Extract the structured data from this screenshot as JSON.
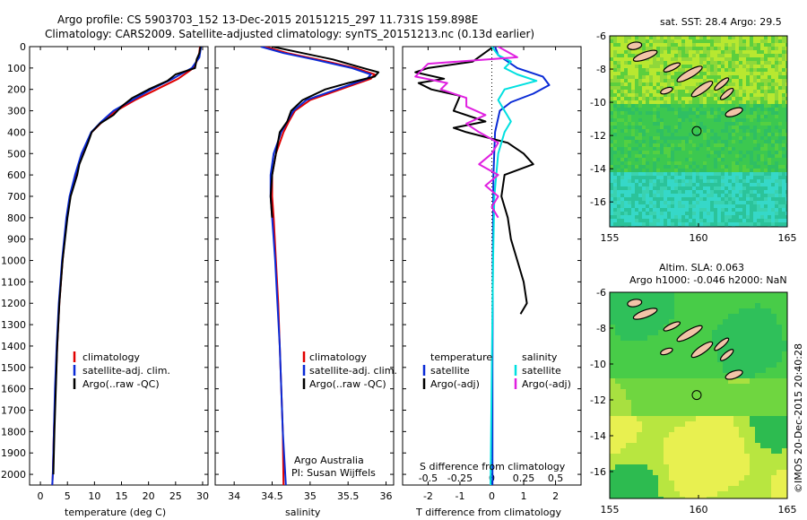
{
  "header": {
    "line1": "Argo profile: CS 5903703_152 13-Dec-2015 20151215_297 11.731S 159.898E",
    "line2": "Climatology: CARS2009. Satellite-adjusted climatology: synTS_20151213.nc (0.13d earlier)"
  },
  "colors": {
    "clim": "#e00000",
    "sat": "#0a2bd6",
    "argo": "#000000",
    "sat_s": "#00e0e0",
    "argo_s": "#e020e0"
  },
  "depth_axis": {
    "ticks": [
      "0",
      "100",
      "200",
      "300",
      "400",
      "500",
      "600",
      "700",
      "800",
      "900",
      "1000",
      "1100",
      "1200",
      "1300",
      "1400",
      "1500",
      "1600",
      "1700",
      "1800",
      "1900",
      "2000"
    ]
  },
  "chart_data": [
    {
      "type": "line",
      "id": "temperature",
      "xlabel": "temperature (deg C)",
      "ylabel": "",
      "xlim": [
        -2,
        31
      ],
      "ylim": [
        2050,
        0
      ],
      "xticks": [
        "0",
        "5",
        "10",
        "15",
        "20",
        "25",
        "30"
      ],
      "legend": [
        "climatology",
        "satellite-adj. clim.",
        "Argo(..raw -QC)"
      ],
      "series": [
        {
          "name": "climatology",
          "depth": [
            0,
            50,
            100,
            150,
            200,
            250,
            300,
            350,
            400,
            500,
            600,
            700,
            800,
            900,
            1000,
            1200,
            1400,
            1600,
            1800,
            2000,
            2050
          ],
          "values": [
            29.5,
            29.3,
            28.3,
            25.5,
            21.5,
            17.5,
            14,
            11.5,
            9.5,
            7.7,
            6.5,
            5.5,
            4.9,
            4.5,
            4.1,
            3.5,
            3.1,
            2.8,
            2.5,
            2.3,
            2.2
          ]
        },
        {
          "name": "satellite-adj. clim.",
          "depth": [
            0,
            50,
            100,
            150,
            200,
            250,
            300,
            350,
            400,
            500,
            600,
            700,
            800,
            900,
            1000,
            1200,
            1400,
            1600,
            1800,
            2000,
            2050
          ],
          "values": [
            29.7,
            29.4,
            28.0,
            24.5,
            20.5,
            17.0,
            13.5,
            11.3,
            9.4,
            7.6,
            6.4,
            5.4,
            4.8,
            4.4,
            4.0,
            3.4,
            3.0,
            2.7,
            2.5,
            2.3,
            2.2
          ]
        },
        {
          "name": "Argo(..raw -QC)",
          "depth": [
            0,
            30,
            60,
            100,
            130,
            160,
            200,
            240,
            280,
            320,
            360,
            400,
            450,
            500,
            550,
            600,
            700,
            800,
            1000,
            1200,
            1400,
            1800,
            2000
          ],
          "values": [
            29.6,
            29.4,
            28.9,
            28.6,
            25.0,
            23.5,
            20.0,
            17.0,
            15.0,
            13.5,
            11.0,
            9.5,
            8.8,
            8.0,
            7.2,
            6.8,
            5.6,
            5.0,
            4.1,
            3.5,
            3.1,
            2.6,
            2.4
          ]
        }
      ]
    },
    {
      "type": "line",
      "id": "salinity",
      "xlabel": "salinity",
      "ylabel": "",
      "xlim": [
        33.75,
        36.1
      ],
      "ylim": [
        2050,
        0
      ],
      "xticks": [
        "34",
        "34.5",
        "35",
        "35.5",
        "36"
      ],
      "legend": [
        "climatology",
        "satellite-adj. clim.",
        "Argo(..raw -QC)"
      ],
      "series": [
        {
          "name": "climatology",
          "depth": [
            0,
            30,
            60,
            100,
            130,
            150,
            200,
            250,
            300,
            350,
            400,
            500,
            600,
            700,
            800,
            1000,
            1200,
            1400,
            1600,
            1800,
            2050
          ],
          "values": [
            34.4,
            34.7,
            35.1,
            35.6,
            35.85,
            35.8,
            35.4,
            35.0,
            34.8,
            34.72,
            34.65,
            34.55,
            34.5,
            34.5,
            34.52,
            34.55,
            34.58,
            34.6,
            34.62,
            34.64,
            34.65
          ]
        },
        {
          "name": "satellite-adj. clim.",
          "depth": [
            0,
            30,
            60,
            100,
            130,
            150,
            200,
            250,
            300,
            350,
            400,
            500,
            600,
            700,
            800,
            1000,
            1200,
            1400,
            1600,
            1800,
            2050
          ],
          "values": [
            34.35,
            34.65,
            35.05,
            35.55,
            35.8,
            35.75,
            35.35,
            34.95,
            34.78,
            34.7,
            34.62,
            34.52,
            34.48,
            34.48,
            34.5,
            34.54,
            34.57,
            34.6,
            34.62,
            34.64,
            34.68
          ]
        },
        {
          "name": "Argo(..raw -QC)",
          "depth": [
            0,
            30,
            60,
            100,
            120,
            140,
            170,
            200,
            250,
            300,
            350,
            400,
            500,
            600,
            700,
            800
          ],
          "values": [
            34.5,
            34.9,
            35.3,
            35.7,
            35.9,
            35.85,
            35.5,
            35.2,
            34.9,
            34.75,
            34.7,
            34.6,
            34.55,
            34.5,
            34.48,
            34.5
          ]
        }
      ],
      "annotations": [
        "Argo Australia",
        "PI: Susan Wijffels"
      ]
    },
    {
      "type": "line",
      "id": "difference",
      "xlabel": "T difference from climatology",
      "x2label": "S difference from climatology",
      "xlim": [
        -2.8,
        2.8
      ],
      "ylim": [
        2050,
        0
      ],
      "xticks": [
        "-2",
        "-1",
        "0",
        "1",
        "2"
      ],
      "x2ticks": [
        "-0.5",
        "-0.25",
        "0",
        "0.25",
        "0.5"
      ],
      "legend_titles": [
        "temperature",
        "salinity"
      ],
      "legend_t": [
        "satellite",
        "Argo(-adj)"
      ],
      "legend_s": [
        "satellite",
        "Argo(-adj)"
      ],
      "series": [
        {
          "name": "T satellite",
          "depth": [
            0,
            40,
            70,
            100,
            140,
            180,
            220,
            260,
            300,
            400,
            600,
            1000,
            1500,
            2050
          ],
          "values": [
            0.1,
            0.2,
            0.5,
            0.8,
            1.6,
            1.8,
            1.3,
            0.6,
            0.25,
            0.1,
            0.05,
            0.03,
            0.02,
            0.02
          ]
        },
        {
          "name": "T Argo(-adj)",
          "depth": [
            0,
            70,
            100,
            120,
            150,
            170,
            200,
            230,
            300,
            350,
            380,
            400,
            450,
            500,
            550,
            600,
            700,
            800,
            900,
            1000,
            1100,
            1200,
            1250
          ],
          "values": [
            0.05,
            -0.6,
            -2.0,
            -2.4,
            -1.5,
            -2.3,
            -1.9,
            -1.0,
            -1.2,
            -0.2,
            -1.2,
            -0.8,
            0.5,
            1.0,
            1.3,
            0.4,
            0.3,
            0.5,
            0.6,
            0.8,
            1.0,
            1.1,
            0.9
          ]
        },
        {
          "name": "S satellite",
          "depth": [
            0,
            40,
            70,
            100,
            130,
            160,
            200,
            250,
            300,
            350,
            400,
            500,
            700,
            1000,
            1500,
            2050
          ],
          "values": [
            0.0,
            0.05,
            0.15,
            0.1,
            0.2,
            0.35,
            0.1,
            0.05,
            0.1,
            0.15,
            0.1,
            0.05,
            0.02,
            0.01,
            0.0,
            -0.01
          ]
        },
        {
          "name": "S Argo(-adj)",
          "depth": [
            0,
            50,
            80,
            110,
            140,
            170,
            200,
            240,
            280,
            320,
            360,
            400,
            450,
            500,
            550,
            600,
            650,
            700,
            750,
            800
          ],
          "values": [
            0.05,
            0.2,
            -0.5,
            -0.55,
            -0.6,
            -0.35,
            -0.4,
            -0.2,
            -0.2,
            -0.05,
            -0.2,
            -0.1,
            0.05,
            0.0,
            -0.1,
            0.05,
            -0.05,
            0.05,
            0.0,
            0.05
          ]
        }
      ]
    },
    {
      "type": "heatmap",
      "id": "sst_map",
      "title": "sat. SST: 28.4 Argo: 29.5",
      "xlim": [
        155,
        165
      ],
      "ylim": [
        -17.5,
        -6
      ],
      "xticks": [
        "155",
        "160",
        "165"
      ],
      "yticks": [
        "-6",
        "-8",
        "-10",
        "-12",
        "-14",
        "-16"
      ]
    },
    {
      "type": "heatmap",
      "id": "sla_map",
      "title_line1": "Altim. SLA: 0.063",
      "title_line2": "Argo h1000: -0.046 h2000: NaN",
      "xlim": [
        155,
        165
      ],
      "ylim": [
        -17.5,
        -6
      ],
      "xticks": [
        "155",
        "160",
        "165"
      ],
      "yticks": [
        "-6",
        "-8",
        "-10",
        "-12",
        "-14",
        "-16"
      ]
    }
  ],
  "credit": "©IMOS 20-Dec-2015 20:40:28"
}
